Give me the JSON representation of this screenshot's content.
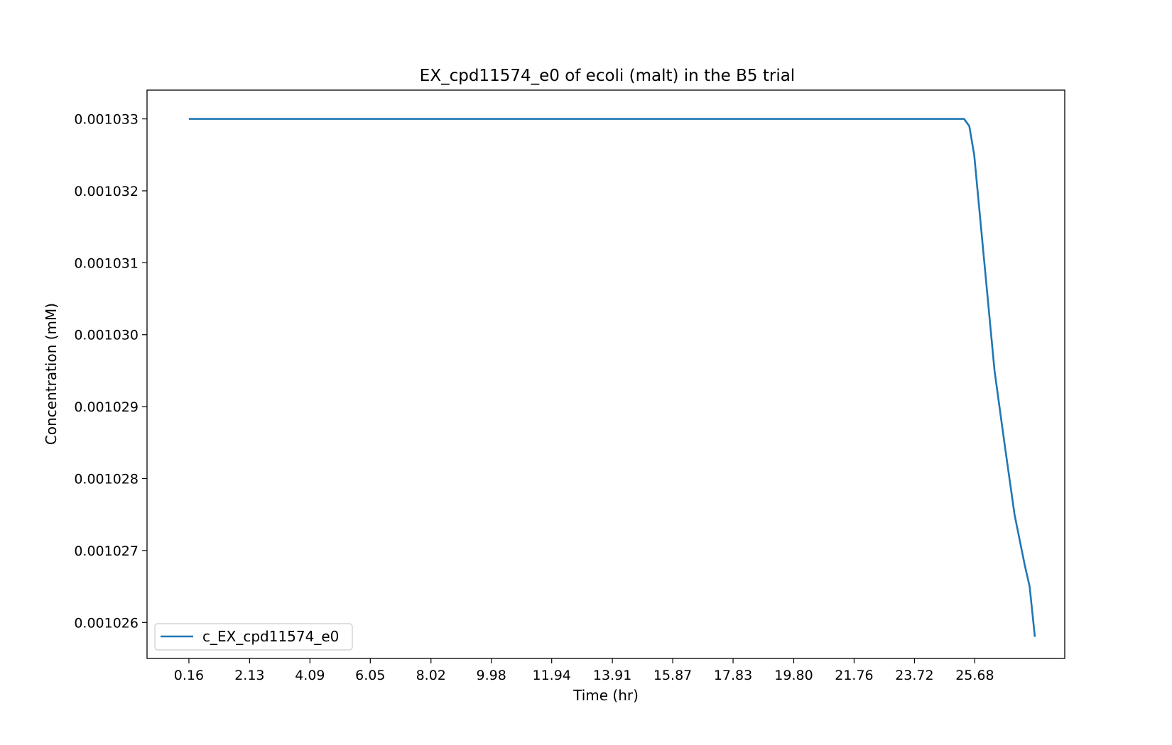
{
  "chart_data": {
    "type": "line",
    "title": "EX_cpd11574_e0 of ecoli (malt) in the B5 trial",
    "xlabel": "Time (hr)",
    "ylabel": "Concentration (mM)",
    "xlim": [
      -1.2,
      28.6
    ],
    "ylim": [
      0.0010255,
      0.0010334
    ],
    "x_ticks": [
      0.16,
      2.13,
      4.09,
      6.05,
      8.02,
      9.98,
      11.94,
      13.91,
      15.87,
      17.83,
      19.8,
      21.76,
      23.72,
      25.68
    ],
    "x_tick_labels": [
      "0.16",
      "2.13",
      "4.09",
      "6.05",
      "8.02",
      "9.98",
      "11.94",
      "13.91",
      "15.87",
      "17.83",
      "19.80",
      "21.76",
      "23.72",
      "25.68"
    ],
    "y_ticks": [
      0.001026,
      0.001027,
      0.001028,
      0.001029,
      0.00103,
      0.001031,
      0.001032,
      0.001033
    ],
    "y_tick_labels": [
      "0.001026",
      "0.001027",
      "0.001028",
      "0.001029",
      "0.001030",
      "0.001031",
      "0.001032",
      "0.001033"
    ],
    "grid": false,
    "legend_position": "lower-left",
    "series": [
      {
        "name": "c_EX_cpd11574_e0",
        "color": "#1f77b4",
        "x": [
          0.16,
          5.0,
          10.0,
          15.0,
          20.0,
          25.0,
          25.33,
          25.5,
          25.66,
          25.99,
          26.32,
          26.64,
          26.97,
          27.3,
          27.46,
          27.63
        ],
        "values": [
          0.001033,
          0.001033,
          0.001033,
          0.001033,
          0.001033,
          0.001033,
          0.001033,
          0.0010329,
          0.0010325,
          0.001031,
          0.0010295,
          0.0010285,
          0.0010275,
          0.0010268,
          0.0010265,
          0.0010258
        ]
      }
    ]
  }
}
